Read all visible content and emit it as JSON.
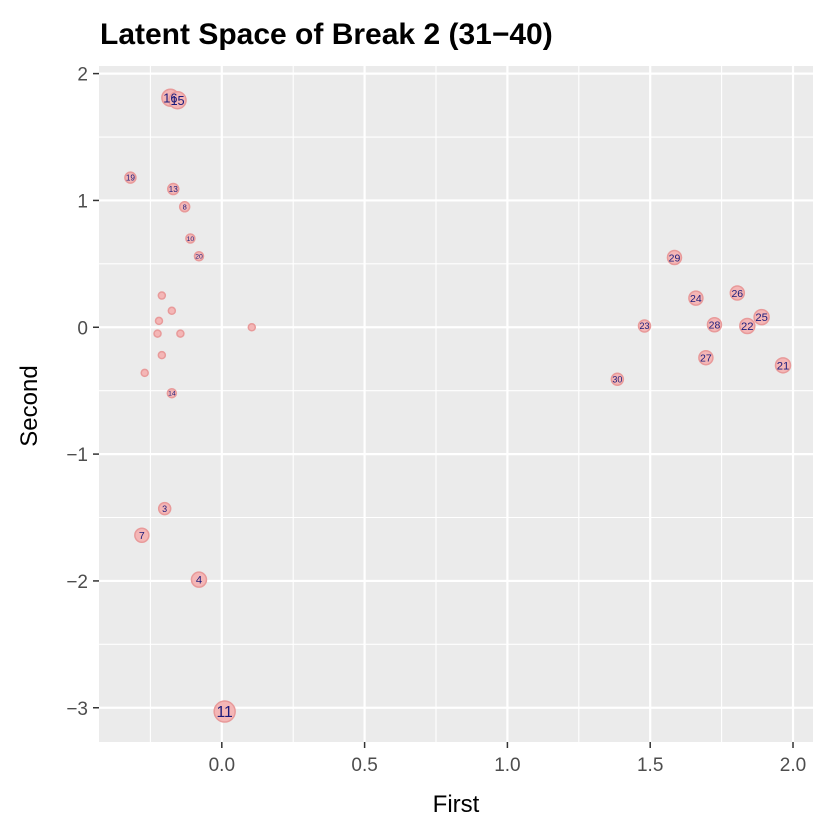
{
  "chart_data": {
    "type": "scatter",
    "title": "Latent Space of Break 2 (31−40)",
    "xlabel": "First",
    "ylabel": "Second",
    "xlim": [
      -0.43,
      2.07
    ],
    "ylim": [
      -3.27,
      2.06
    ],
    "x_ticks": [
      0.0,
      0.5,
      1.0,
      1.5,
      2.0
    ],
    "x_tick_labels": [
      "0.0",
      "0.5",
      "1.0",
      "1.5",
      "2.0"
    ],
    "y_ticks": [
      2,
      1,
      0,
      -1,
      -2,
      -3
    ],
    "y_tick_labels": [
      "2",
      "1",
      "0",
      "−1",
      "−2",
      "−3"
    ],
    "grid": true,
    "legend": "none",
    "colors": {
      "panel": "#ebebeb",
      "grid": "#ffffff",
      "point_fill": "#f4b6b6",
      "point_stroke": "#e89a9a",
      "label": "#1a1a7a"
    },
    "points": [
      {
        "label": "16",
        "x": -0.18,
        "y": 1.81,
        "size": 8.5
      },
      {
        "label": "15",
        "x": -0.155,
        "y": 1.79,
        "size": 8.5
      },
      {
        "label": "19",
        "x": -0.32,
        "y": 1.18,
        "size": 5.5
      },
      {
        "label": "13",
        "x": -0.17,
        "y": 1.09,
        "size": 5.5
      },
      {
        "label": "8",
        "x": -0.13,
        "y": 0.95,
        "size": 5.0
      },
      {
        "label": "10",
        "x": -0.11,
        "y": 0.7,
        "size": 4.5
      },
      {
        "label": "20",
        "x": -0.08,
        "y": 0.56,
        "size": 4.5
      },
      {
        "label": "",
        "x": -0.21,
        "y": 0.25,
        "size": 3.5
      },
      {
        "label": "",
        "x": -0.175,
        "y": 0.13,
        "size": 3.5
      },
      {
        "label": "",
        "x": -0.22,
        "y": 0.05,
        "size": 3.5
      },
      {
        "label": "",
        "x": 0.105,
        "y": 0.0,
        "size": 3.5
      },
      {
        "label": "",
        "x": -0.145,
        "y": -0.05,
        "size": 3.5
      },
      {
        "label": "",
        "x": -0.225,
        "y": -0.05,
        "size": 3.5
      },
      {
        "label": "",
        "x": -0.21,
        "y": -0.22,
        "size": 3.5
      },
      {
        "label": "",
        "x": -0.27,
        "y": -0.36,
        "size": 3.5
      },
      {
        "label": "14",
        "x": -0.175,
        "y": -0.52,
        "size": 4.5
      },
      {
        "label": "3",
        "x": -0.2,
        "y": -1.43,
        "size": 6.0
      },
      {
        "label": "7",
        "x": -0.28,
        "y": -1.64,
        "size": 7.0
      },
      {
        "label": "4",
        "x": -0.08,
        "y": -1.99,
        "size": 7.5
      },
      {
        "label": "11",
        "x": 0.01,
        "y": -3.03,
        "size": 10.5
      },
      {
        "label": "29",
        "x": 1.585,
        "y": 0.55,
        "size": 7.0
      },
      {
        "label": "26",
        "x": 1.805,
        "y": 0.27,
        "size": 7.0
      },
      {
        "label": "24",
        "x": 1.66,
        "y": 0.23,
        "size": 7.0
      },
      {
        "label": "25",
        "x": 1.89,
        "y": 0.08,
        "size": 7.5
      },
      {
        "label": "28",
        "x": 1.725,
        "y": 0.02,
        "size": 7.0
      },
      {
        "label": "23",
        "x": 1.48,
        "y": 0.01,
        "size": 6.0
      },
      {
        "label": "22",
        "x": 1.84,
        "y": 0.01,
        "size": 7.5
      },
      {
        "label": "27",
        "x": 1.695,
        "y": -0.24,
        "size": 7.0
      },
      {
        "label": "21",
        "x": 1.965,
        "y": -0.3,
        "size": 7.5
      },
      {
        "label": "30",
        "x": 1.385,
        "y": -0.41,
        "size": 6.0
      }
    ]
  }
}
